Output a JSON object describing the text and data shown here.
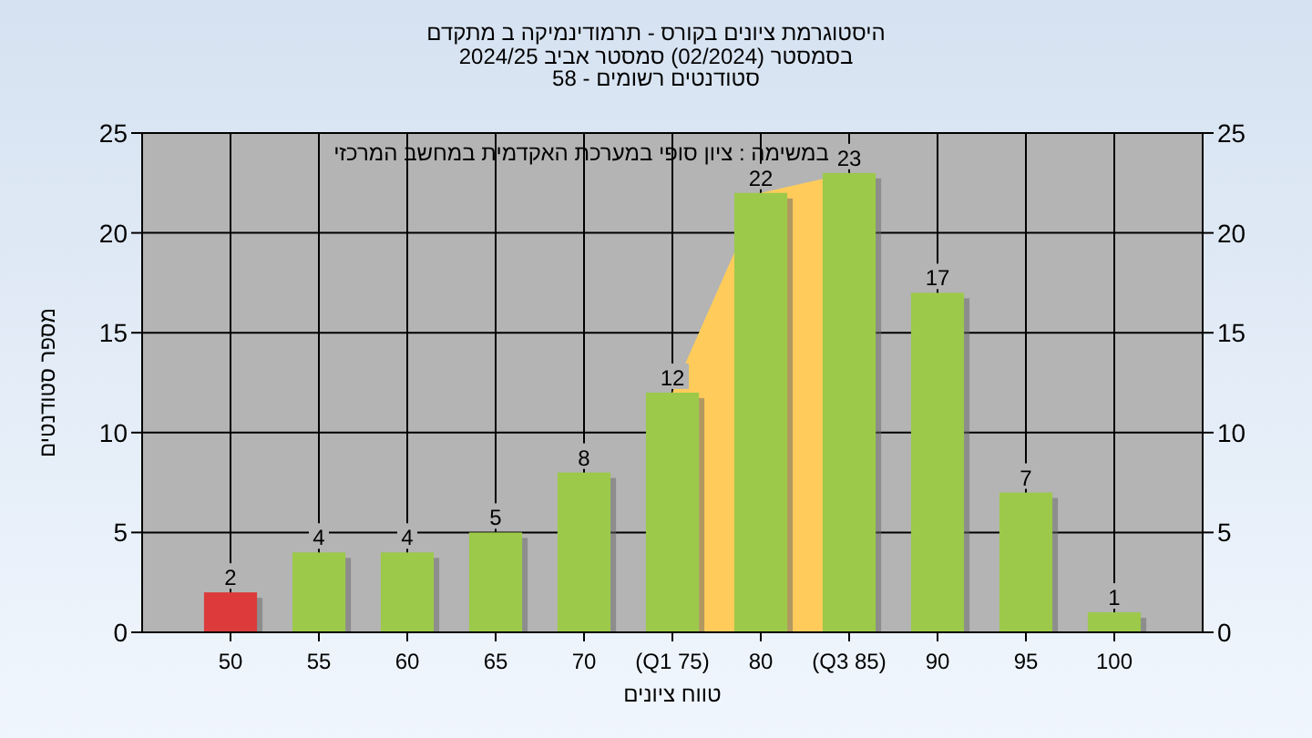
{
  "chart_data": {
    "type": "bar",
    "title": "היסטוגרמת ציונים בקורס - תרמודינמיקה ב מתקדם",
    "subtitle": "בסמסטר (02/2024) סמסטר אביב 2024/25\nסטודנטים רשומים - 58",
    "xlabel": "טווח ציונים",
    "ylabel": "מספר סטודנטים",
    "annotations": [
      "במשימה : ציון סופי במערכת האקדמית במחשב המרכזי"
    ],
    "categories": [
      "50",
      "55",
      "60",
      "65",
      "70",
      "(Q1 75)",
      "80",
      "(Q3 85)",
      "90",
      "95",
      "100"
    ],
    "series": [
      {
        "type": "area",
        "color": "#ffcc5c",
        "values": [
          null,
          null,
          null,
          null,
          null,
          12,
          22,
          23,
          null,
          null,
          null
        ]
      },
      {
        "value_labels": [
          "2",
          "4",
          "4",
          "5",
          "8",
          "12",
          "22",
          "23",
          "17",
          "7",
          "1"
        ],
        "colors": [
          "#dd3b3b",
          "#9cc94a",
          "#9cc94a",
          "#9cc94a",
          "#9cc94a",
          "#9cc94a",
          "#9cc94a",
          "#9cc94a",
          "#9cc94a",
          "#9cc94a",
          "#9cc94a"
        ],
        "values": [
          2,
          4,
          4,
          5,
          8,
          12,
          22,
          23,
          17,
          7,
          1
        ]
      }
    ],
    "ylim": [
      0,
      25
    ],
    "yticks": [
      0,
      5,
      10,
      15,
      20,
      25
    ],
    "y2lim": [
      0,
      25
    ],
    "y2ticks": [
      0,
      5,
      10,
      15,
      20,
      25
    ],
    "grid": true
  }
}
